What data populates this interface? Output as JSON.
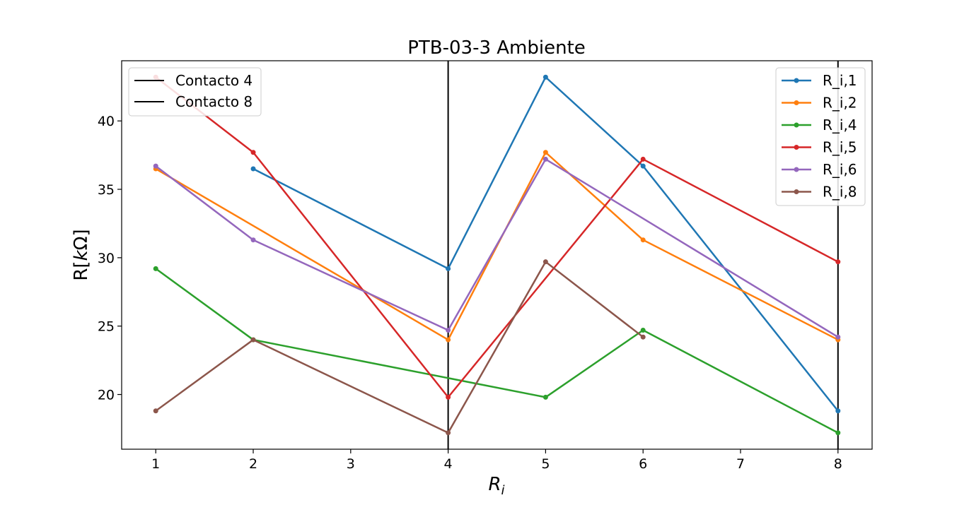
{
  "chart_data": {
    "type": "line",
    "title": "PTB-03-3 Ambiente",
    "xlabel_base": "R",
    "xlabel_sub": "i",
    "ylabel": "R[kΩ]",
    "ylabel_base": "R[",
    "ylabel_italic": "k",
    "ylabel_tail": "Ω]",
    "x_ticks": [
      1,
      2,
      3,
      4,
      5,
      6,
      7,
      8
    ],
    "x_tick_labels": [
      "1",
      "2",
      "3",
      "4",
      "5",
      "6",
      "7",
      "8"
    ],
    "y_ticks": [
      20,
      25,
      30,
      35,
      40
    ],
    "y_tick_labels": [
      "20",
      "25",
      "30",
      "35",
      "40"
    ],
    "xlim": [
      0.65,
      8.35
    ],
    "ylim": [
      16.0,
      44.4
    ],
    "grid": false,
    "series": [
      {
        "name": "R_i,1",
        "color": "#1f77b4",
        "x": [
          2,
          4,
          5,
          6,
          8
        ],
        "values": [
          36.5,
          29.2,
          43.2,
          36.7,
          18.8
        ]
      },
      {
        "name": "R_i,2",
        "color": "#ff7f0e",
        "x": [
          1,
          4,
          5,
          6,
          8
        ],
        "values": [
          36.5,
          24.0,
          37.7,
          31.3,
          24.0
        ]
      },
      {
        "name": "R_i,4",
        "color": "#2ca02c",
        "x": [
          1,
          2,
          5,
          6,
          8
        ],
        "values": [
          29.2,
          24.0,
          19.8,
          24.7,
          17.2
        ]
      },
      {
        "name": "R_i,5",
        "color": "#d62728",
        "x": [
          1,
          2,
          4,
          6,
          8
        ],
        "values": [
          43.2,
          37.7,
          19.8,
          37.2,
          29.7
        ]
      },
      {
        "name": "R_i,6",
        "color": "#9467bd",
        "x": [
          1,
          2,
          4,
          5,
          8
        ],
        "values": [
          36.7,
          31.3,
          24.7,
          37.2,
          24.2
        ]
      },
      {
        "name": "R_i,8",
        "color": "#8c564b",
        "x": [
          1,
          2,
          4,
          5,
          6
        ],
        "values": [
          18.8,
          24.0,
          17.2,
          29.7,
          24.2
        ]
      }
    ],
    "vlines": [
      {
        "name": "Contacto 4",
        "x": 4,
        "color": "#000000"
      },
      {
        "name": "Contacto 8",
        "x": 8,
        "color": "#000000"
      }
    ],
    "legends": {
      "vlines": "top-left",
      "series": "top-right"
    }
  }
}
